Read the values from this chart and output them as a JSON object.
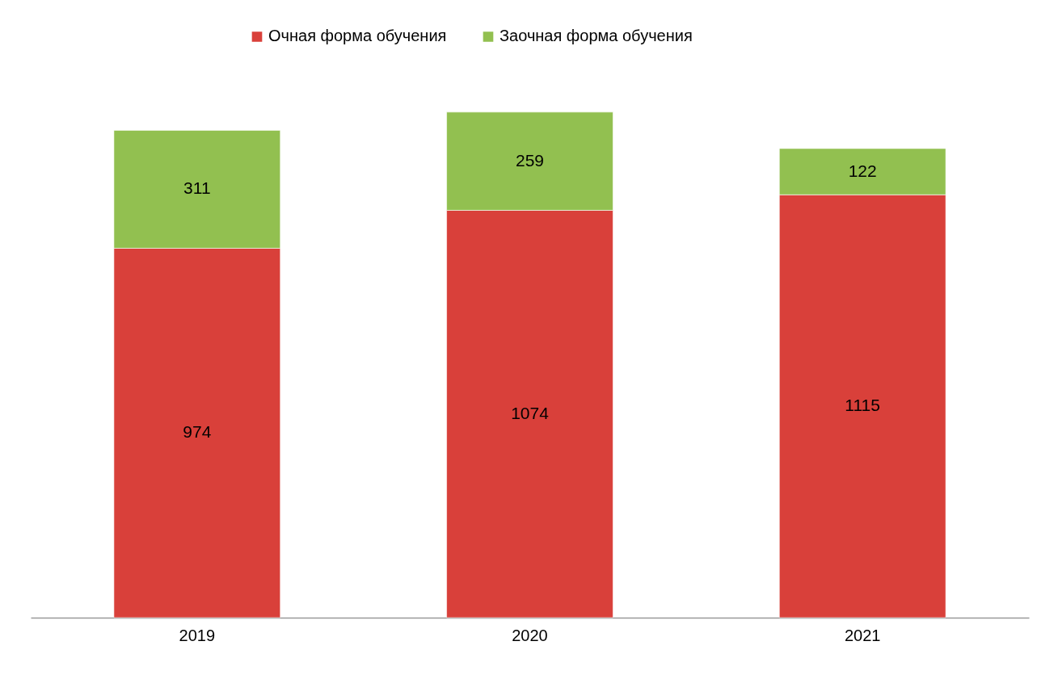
{
  "chart_data": {
    "type": "bar",
    "stacked": true,
    "data_labels": true,
    "legend": "top",
    "categories": [
      "2019",
      "2020",
      "2021"
    ],
    "series": [
      {
        "name": "Очная форма обучения",
        "color": "#d9403a",
        "values": [
          974,
          1074,
          1115
        ]
      },
      {
        "name": "Заочная форма обучения",
        "color": "#92c050",
        "values": [
          311,
          259,
          122
        ]
      }
    ]
  }
}
